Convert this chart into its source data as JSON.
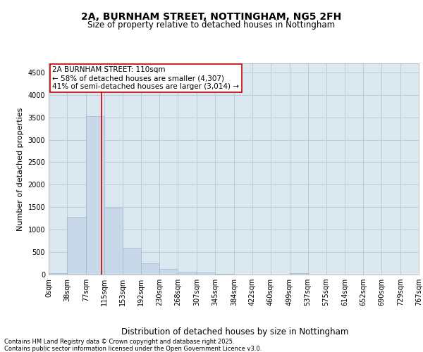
{
  "title_line1": "2A, BURNHAM STREET, NOTTINGHAM, NG5 2FH",
  "title_line2": "Size of property relative to detached houses in Nottingham",
  "xlabel": "Distribution of detached houses by size in Nottingham",
  "ylabel": "Number of detached properties",
  "bar_color": "#c8d8e8",
  "bar_edgecolor": "#a0b8cc",
  "grid_color": "#b8ceda",
  "background_color": "#dce8f0",
  "annotation_text": "2A BURNHAM STREET: 110sqm\n← 58% of detached houses are smaller (4,307)\n41% of semi-detached houses are larger (3,014) →",
  "vline_x": 110,
  "vline_color": "#cc0000",
  "bins": [
    0,
    38,
    77,
    115,
    153,
    192,
    230,
    268,
    307,
    345,
    384,
    422,
    460,
    499,
    537,
    575,
    614,
    652,
    690,
    729,
    767
  ],
  "bin_labels": [
    "0sqm",
    "38sqm",
    "77sqm",
    "115sqm",
    "153sqm",
    "192sqm",
    "230sqm",
    "268sqm",
    "307sqm",
    "345sqm",
    "384sqm",
    "422sqm",
    "460sqm",
    "499sqm",
    "537sqm",
    "575sqm",
    "614sqm",
    "652sqm",
    "690sqm",
    "729sqm",
    "767sqm"
  ],
  "values": [
    30,
    1280,
    3530,
    1490,
    600,
    250,
    120,
    70,
    40,
    20,
    5,
    0,
    0,
    35,
    0,
    0,
    0,
    0,
    0,
    0
  ],
  "ylim": [
    0,
    4700
  ],
  "yticks": [
    0,
    500,
    1000,
    1500,
    2000,
    2500,
    3000,
    3500,
    4000,
    4500
  ],
  "footer_text": "Contains HM Land Registry data © Crown copyright and database right 2025.\nContains public sector information licensed under the Open Government Licence v3.0.",
  "title_fontsize": 10,
  "subtitle_fontsize": 8.5,
  "xlabel_fontsize": 8.5,
  "ylabel_fontsize": 8,
  "tick_fontsize": 7,
  "footer_fontsize": 6,
  "ann_fontsize": 7.5
}
